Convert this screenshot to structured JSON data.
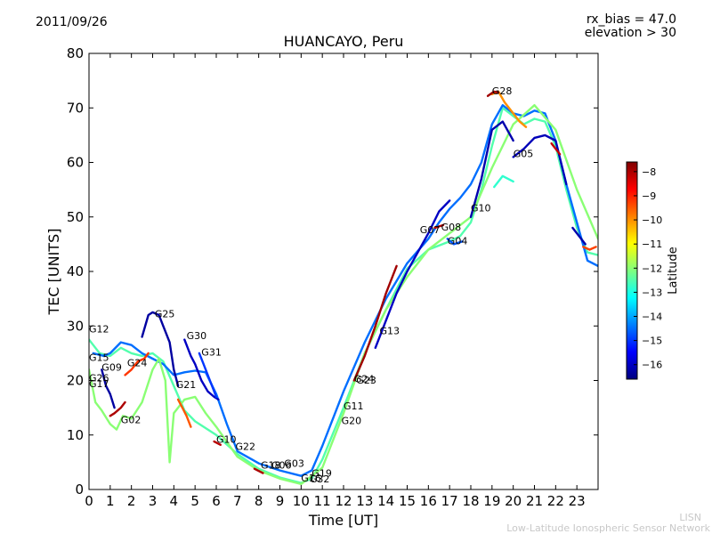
{
  "header": {
    "date": "2011/09/26",
    "rx_bias": "rx_bias = 47.0",
    "elevation": "elevation > 30"
  },
  "footer": {
    "org_short": "LISN",
    "org_full": "Low-Latitude Ionospheric Sensor Network"
  },
  "colors": {
    "axis": "#000000",
    "background": "#ffffff",
    "footer_text": "#c8c8c8",
    "jet": [
      "#00007f",
      "#0000ff",
      "#007fff",
      "#00ffff",
      "#7fff7f",
      "#ffff00",
      "#ff7f00",
      "#ff0000",
      "#7f0000"
    ]
  },
  "chart_data": {
    "type": "scatter",
    "title": "HUANCAYO, Peru",
    "xlabel": "Time [UT]",
    "ylabel": "TEC [UNITS]",
    "xlim": [
      0,
      24
    ],
    "ylim": [
      0,
      80
    ],
    "xticks": [
      "0",
      "1",
      "2",
      "3",
      "4",
      "5",
      "6",
      "7",
      "8",
      "9",
      "10",
      "11",
      "12",
      "13",
      "14",
      "15",
      "16",
      "17",
      "18",
      "19",
      "20",
      "21",
      "22",
      "23"
    ],
    "yticks": [
      "0",
      "10",
      "20",
      "30",
      "40",
      "50",
      "60",
      "70",
      "80"
    ],
    "colorbar": {
      "label": "Latitude",
      "min": -16.6,
      "max": -7.6,
      "ticks": [
        "-8",
        "-9",
        "-10",
        "-11",
        "-12",
        "-13",
        "-14",
        "-15",
        "-16"
      ]
    },
    "satellite_labels": [
      {
        "name": "G28",
        "x": 19.0,
        "y": 72.5
      },
      {
        "name": "G05",
        "x": 20.0,
        "y": 61.0
      },
      {
        "name": "G10",
        "x": 18.0,
        "y": 51.0
      },
      {
        "name": "G07",
        "x": 15.6,
        "y": 47.0
      },
      {
        "name": "G08",
        "x": 16.6,
        "y": 47.5
      },
      {
        "name": "G04",
        "x": 16.9,
        "y": 45.0
      },
      {
        "name": "G13",
        "x": 13.7,
        "y": 28.5
      },
      {
        "name": "G24",
        "x": 12.5,
        "y": 19.7
      },
      {
        "name": "G23",
        "x": 12.6,
        "y": 19.4
      },
      {
        "name": "G11",
        "x": 12.0,
        "y": 14.7
      },
      {
        "name": "G20",
        "x": 11.9,
        "y": 12.0
      },
      {
        "name": "G19",
        "x": 10.5,
        "y": 2.4
      },
      {
        "name": "G32",
        "x": 10.4,
        "y": 1.3
      },
      {
        "name": "G16",
        "x": 10.0,
        "y": 1.5
      },
      {
        "name": "G03",
        "x": 9.2,
        "y": 4.2
      },
      {
        "name": "G06",
        "x": 8.6,
        "y": 3.8
      },
      {
        "name": "G18",
        "x": 8.1,
        "y": 3.8
      },
      {
        "name": "G22",
        "x": 6.9,
        "y": 7.3
      },
      {
        "name": "G10",
        "x": 6.0,
        "y": 8.6
      },
      {
        "name": "G21",
        "x": 4.1,
        "y": 18.6
      },
      {
        "name": "G31",
        "x": 5.3,
        "y": 24.6
      },
      {
        "name": "G30",
        "x": 4.6,
        "y": 27.6
      },
      {
        "name": "G25",
        "x": 3.1,
        "y": 31.6
      },
      {
        "name": "G24",
        "x": 1.8,
        "y": 22.6
      },
      {
        "name": "G12",
        "x": 0.0,
        "y": 28.8
      },
      {
        "name": "G15",
        "x": 0.0,
        "y": 23.6
      },
      {
        "name": "G09",
        "x": 0.6,
        "y": 21.8
      },
      {
        "name": "G26",
        "x": 0.0,
        "y": 19.8
      },
      {
        "name": "G17",
        "x": 0.0,
        "y": 18.8
      },
      {
        "name": "G02",
        "x": 1.5,
        "y": 12.2
      }
    ],
    "series": [
      {
        "name": "main-green",
        "lat": -12.5,
        "x": [
          0,
          0.5,
          1.0,
          1.5,
          2.0,
          2.5,
          3.0,
          3.5,
          4.0,
          4.5,
          5.0,
          6.0,
          7.0,
          8.0,
          9.0,
          10.0,
          10.5,
          11.0,
          12.0,
          13.0,
          14.0,
          15.0,
          16.0,
          17.0,
          17.5,
          18.0,
          18.5,
          19.0,
          19.5,
          20.0,
          20.5,
          21.0,
          21.5,
          22.0,
          22.5,
          23.0,
          23.5,
          24.0
        ],
        "y": [
          27.5,
          25.0,
          24.5,
          26.0,
          25.0,
          24.5,
          25.0,
          23.5,
          19.0,
          14.5,
          12.5,
          10.0,
          6.5,
          3.8,
          2.2,
          1.2,
          2.0,
          5.5,
          15.0,
          25.0,
          33.0,
          40.5,
          44.0,
          45.5,
          46.5,
          49.0,
          55.0,
          63.0,
          70.0,
          68.5,
          67.0,
          68.0,
          67.5,
          63.0,
          55.0,
          48.0,
          43.5,
          43.0
        ]
      },
      {
        "name": "upper-teal",
        "lat": -14.5,
        "x": [
          0.2,
          0.7,
          1.0,
          1.5,
          2.0,
          2.5,
          3.0,
          3.5,
          4.0,
          4.5,
          5.0,
          5.5,
          6.0,
          6.5,
          7.0,
          8.0,
          9.0,
          10.0,
          10.5,
          11.0,
          12.0,
          13.0,
          14.0,
          15.0,
          16.0,
          16.5,
          17.0,
          17.5,
          18.0,
          18.5,
          19.0,
          19.5,
          20.0,
          20.5,
          21.0,
          21.5,
          22.0,
          22.5,
          23.0,
          23.5,
          24.0
        ],
        "y": [
          25.0,
          24.5,
          25.0,
          27.0,
          26.5,
          25.0,
          24.0,
          23.0,
          21.0,
          21.5,
          21.8,
          21.5,
          17.5,
          12.0,
          7.0,
          4.8,
          3.5,
          2.5,
          3.5,
          8.0,
          18.0,
          27.0,
          35.0,
          41.5,
          46.0,
          49.0,
          51.5,
          53.5,
          56.0,
          60.0,
          67.0,
          70.5,
          69.0,
          68.5,
          69.5,
          69.0,
          64.0,
          56.0,
          49.0,
          42.0,
          41.0
        ]
      },
      {
        "name": "lower-green",
        "lat": -12.0,
        "x": [
          0.0,
          0.3,
          0.6,
          1.0,
          1.3,
          1.6,
          2.0,
          2.5,
          3.0,
          3.3,
          3.6,
          3.8,
          4.0,
          4.5,
          5.0,
          5.5,
          6.0,
          7.0,
          8.0,
          9.0,
          10.0,
          11.0,
          12.0,
          13.0,
          14.0,
          15.0,
          16.0,
          17.0,
          18.0,
          19.0,
          20.0,
          21.0,
          22.0,
          23.0,
          24.0
        ],
        "y": [
          22.0,
          16.0,
          14.5,
          12.0,
          11.0,
          13.5,
          13.0,
          16.0,
          22.0,
          24.0,
          20.0,
          5.0,
          14.0,
          16.5,
          17.0,
          14.0,
          11.5,
          6.0,
          3.5,
          2.0,
          1.0,
          4.0,
          14.0,
          25.0,
          33.0,
          39.0,
          44.0,
          47.0,
          50.0,
          59.0,
          67.0,
          70.5,
          66.0,
          55.0,
          46.0
        ]
      },
      {
        "name": "g25-dark",
        "lat": -16.3,
        "x": [
          2.5,
          2.8,
          3.0,
          3.3,
          3.5,
          3.8,
          4.0,
          4.2
        ],
        "y": [
          28.0,
          32.0,
          32.5,
          32.0,
          30.0,
          27.0,
          22.0,
          19.0
        ]
      },
      {
        "name": "g30-dark",
        "lat": -16.0,
        "x": [
          4.5,
          4.8,
          5.0,
          5.3,
          5.6,
          5.9,
          6.1
        ],
        "y": [
          27.5,
          24.5,
          23.0,
          20.0,
          18.0,
          17.0,
          16.5
        ]
      },
      {
        "name": "g31-cyan",
        "lat": -15.0,
        "x": [
          5.2,
          5.4,
          5.6,
          5.8,
          6.0
        ],
        "y": [
          25.0,
          23.0,
          21.0,
          19.0,
          17.0
        ]
      },
      {
        "name": "g21-orange",
        "lat": -9.5,
        "x": [
          4.2,
          4.4,
          4.6,
          4.8
        ],
        "y": [
          16.5,
          15.0,
          13.5,
          11.5
        ]
      },
      {
        "name": "g09-blue",
        "lat": -16.3,
        "x": [
          0.6,
          0.8,
          1.0,
          1.2
        ],
        "y": [
          22.0,
          19.0,
          17.5,
          15.0
        ]
      },
      {
        "name": "g02-red",
        "lat": -8.0,
        "x": [
          1.0,
          1.2,
          1.5,
          1.7
        ],
        "y": [
          13.5,
          14.0,
          15.0,
          16.0
        ]
      },
      {
        "name": "g24-early-orange",
        "lat": -9.2,
        "x": [
          1.7,
          2.0,
          2.3,
          2.6,
          2.8
        ],
        "y": [
          21.0,
          22.0,
          23.5,
          24.0,
          25.0
        ]
      },
      {
        "name": "g13-red",
        "lat": -7.9,
        "x": [
          12.5,
          13.0,
          13.5,
          14.0,
          14.5
        ],
        "y": [
          20.0,
          24.5,
          30.0,
          36.0,
          41.0
        ]
      },
      {
        "name": "g13-blue",
        "lat": -16.0,
        "x": [
          13.5,
          14.0,
          14.5,
          15.0,
          15.5,
          16.0,
          16.5,
          17.0
        ],
        "y": [
          26.0,
          31.0,
          36.0,
          40.0,
          43.5,
          47.0,
          51.0,
          53.0
        ]
      },
      {
        "name": "g10-blue",
        "lat": -16.2,
        "x": [
          18.0,
          18.5,
          19.0,
          19.5,
          20.0
        ],
        "y": [
          50.0,
          57.0,
          66.0,
          67.5,
          64.0
        ]
      },
      {
        "name": "g05-blue",
        "lat": -16.1,
        "x": [
          20.0,
          20.5,
          21.0,
          21.5,
          22.0,
          22.5
        ],
        "y": [
          61.0,
          62.5,
          64.5,
          65.0,
          64.0,
          56.0
        ]
      },
      {
        "name": "g28-yellow",
        "lat": -10.0,
        "x": [
          19.0,
          19.3,
          19.6,
          20.0,
          20.3,
          20.6
        ],
        "y": [
          72.5,
          73.0,
          71.0,
          69.0,
          67.5,
          66.5
        ]
      },
      {
        "name": "g28-red",
        "lat": -7.9,
        "x": [
          18.8,
          19.1,
          19.3
        ],
        "y": [
          72.2,
          73.0,
          72.8
        ]
      },
      {
        "name": "g08-red",
        "lat": -8.0,
        "x": [
          16.3,
          16.7
        ],
        "y": [
          48.0,
          48.5
        ]
      },
      {
        "name": "g04-teal",
        "lat": -14.7,
        "x": [
          16.9,
          17.2,
          17.6
        ],
        "y": [
          46.0,
          45.0,
          45.5
        ]
      },
      {
        "name": "pair-green",
        "lat": -12.8,
        "x": [
          19.1,
          19.5,
          20.0
        ],
        "y": [
          55.5,
          57.5,
          56.5
        ]
      },
      {
        "name": "late-red",
        "lat": -8.2,
        "x": [
          21.8,
          22.0,
          22.2
        ],
        "y": [
          63.5,
          62.5,
          61.5
        ]
      },
      {
        "name": "late-blue",
        "lat": -16.2,
        "x": [
          22.8,
          23.1,
          23.4
        ],
        "y": [
          48.0,
          46.5,
          45.0
        ]
      },
      {
        "name": "late-orange",
        "lat": -9.3,
        "x": [
          23.3,
          23.6,
          23.9
        ],
        "y": [
          44.5,
          44.0,
          44.5
        ]
      },
      {
        "name": "g10-red",
        "lat": -8.1,
        "x": [
          5.9,
          6.2
        ],
        "y": [
          8.8,
          8.2
        ]
      },
      {
        "name": "g18-red",
        "lat": -8.0,
        "x": [
          7.8,
          8.2
        ],
        "y": [
          3.8,
          3.0
        ]
      }
    ]
  }
}
